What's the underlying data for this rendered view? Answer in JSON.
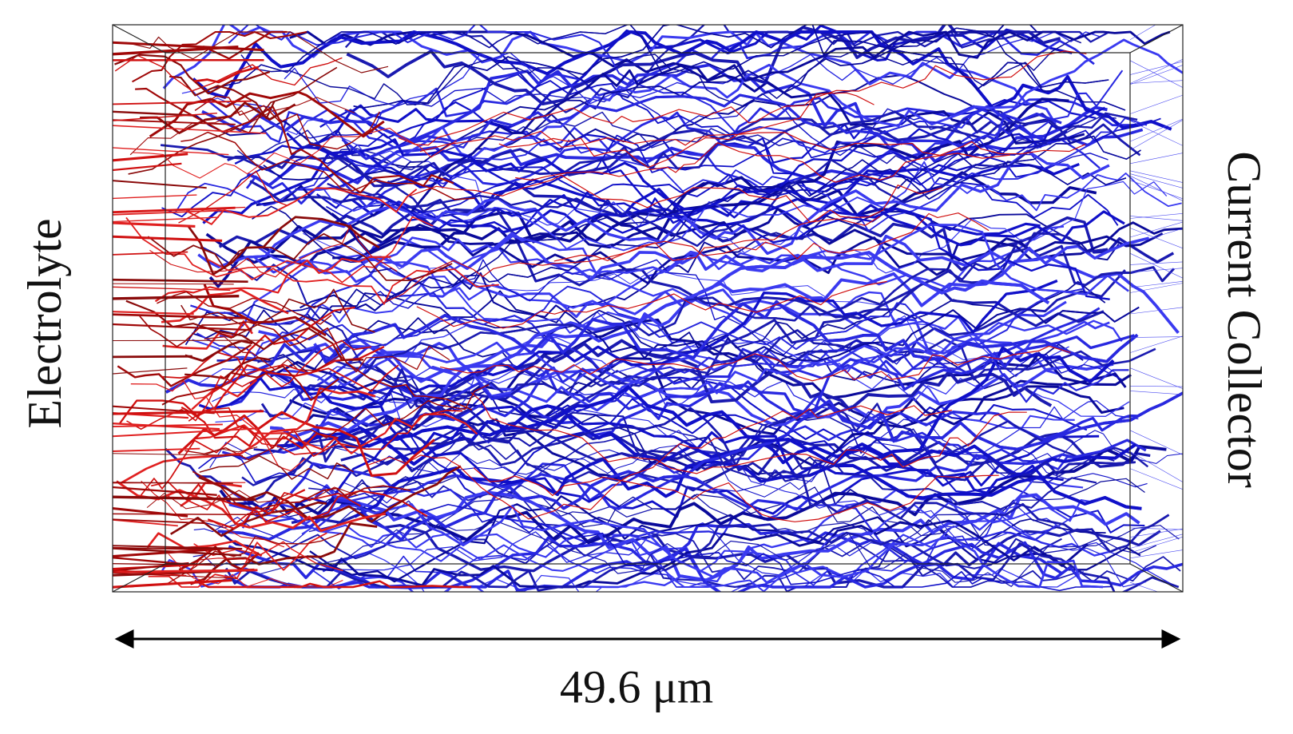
{
  "figure": {
    "left_label": "Electrolyte",
    "right_label": "Current Collector",
    "scale_label": "49.6 μm"
  }
}
